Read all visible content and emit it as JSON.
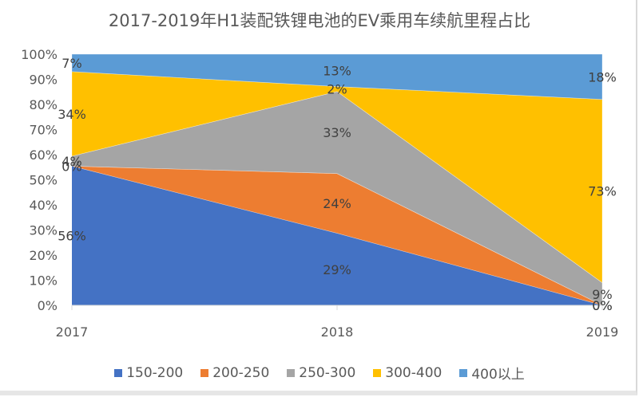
{
  "chart_data": {
    "type": "area",
    "stacked": "percent",
    "title": "2017-2019年H1装配铁锂电池的EV乘用车续航里程占比",
    "xlabel": "",
    "ylabel": "",
    "categories": [
      "2017",
      "2018",
      "2019"
    ],
    "ylim": [
      0,
      100
    ],
    "yticks": [
      "0%",
      "10%",
      "20%",
      "30%",
      "40%",
      "50%",
      "60%",
      "70%",
      "80%",
      "90%",
      "100%"
    ],
    "grid": false,
    "legend_position": "bottom",
    "series": [
      {
        "name": "150-200",
        "color": "#4472c4",
        "values": [
          56,
          29,
          0
        ],
        "labels": [
          "56%",
          "29%",
          "0%"
        ]
      },
      {
        "name": "200-250",
        "color": "#ed7d31",
        "values": [
          0,
          24,
          0
        ],
        "labels": [
          "0%",
          "24%",
          "0%"
        ]
      },
      {
        "name": "250-300",
        "color": "#a5a5a5",
        "values": [
          4,
          33,
          9
        ],
        "labels": [
          "4%",
          "33%",
          "9%"
        ]
      },
      {
        "name": "300-400",
        "color": "#ffc000",
        "values": [
          34,
          2,
          73
        ],
        "labels": [
          "34%",
          "2%",
          "73%"
        ]
      },
      {
        "name": "400以上",
        "color": "#5b9bd5",
        "values": [
          7,
          13,
          18
        ],
        "labels": [
          "7%",
          "13%",
          "18%"
        ]
      }
    ]
  }
}
